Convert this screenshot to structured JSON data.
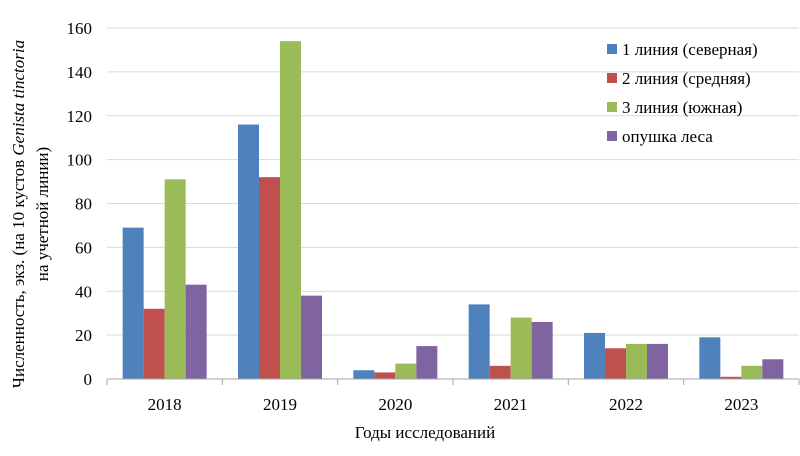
{
  "chart_data": {
    "type": "bar",
    "title": "",
    "xlabel": "Годы исследований",
    "ylabel_line1": "Численность, экз. (на 10 кустов ",
    "ylabel_species": "Genista tinctoria",
    "ylabel_line2": "на учетной линии)",
    "categories": [
      "2018",
      "2019",
      "2020",
      "2021",
      "2022",
      "2023"
    ],
    "series": [
      {
        "name": "1 линия (северная)",
        "color": "#4F81BD",
        "values": [
          69,
          116,
          4,
          34,
          21,
          19
        ]
      },
      {
        "name": "2 линия (средняя)",
        "color": "#C0504D",
        "values": [
          32,
          92,
          3,
          6,
          14,
          1
        ]
      },
      {
        "name": "3 линия (южная)",
        "color": "#9BBB59",
        "values": [
          91,
          154,
          7,
          28,
          16,
          6
        ]
      },
      {
        "name": "опушка леса",
        "color": "#8064A2",
        "values": [
          43,
          38,
          15,
          26,
          16,
          9
        ]
      }
    ],
    "ylim": [
      0,
      160
    ],
    "yticks": [
      0,
      20,
      40,
      60,
      80,
      100,
      120,
      140,
      160
    ],
    "grid": true,
    "legend_position": "top-right",
    "grid_color": "#D9D9D9",
    "axis_color": "#A6A6A6"
  }
}
